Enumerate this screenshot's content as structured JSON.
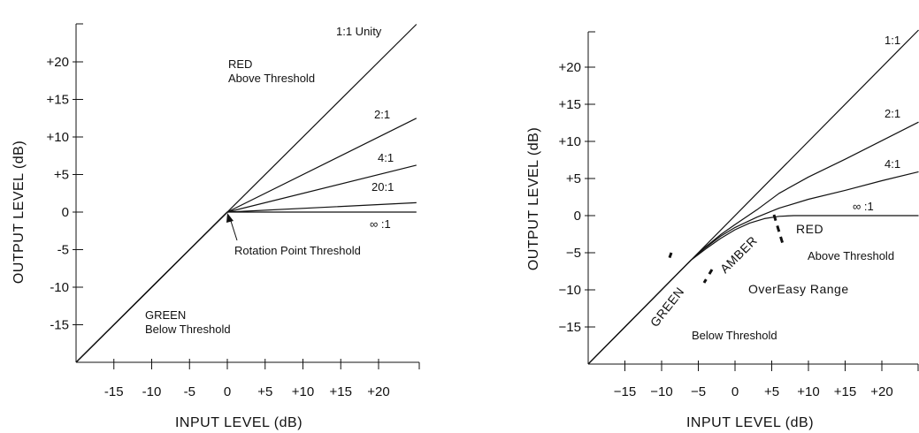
{
  "chart_data": [
    {
      "type": "line",
      "title": "",
      "xlabel": "INPUT LEVEL (dB)",
      "ylabel": "OUTPUT LEVEL (dB)",
      "xlim": [
        -20,
        25
      ],
      "ylim": [
        -20,
        25
      ],
      "x_ticks": [
        -15,
        -10,
        -5,
        0,
        5,
        10,
        15,
        20
      ],
      "x_tick_labels": [
        "-15",
        "-10",
        "-5",
        "0",
        "+5",
        "+10",
        "+15",
        "+20"
      ],
      "y_ticks": [
        20,
        15,
        10,
        5,
        0,
        -5,
        -10,
        -15
      ],
      "y_tick_labels": [
        "+20",
        "+15",
        "+10",
        "+5",
        "0",
        "-5",
        "-10",
        "-15"
      ],
      "grid": false,
      "series": [
        {
          "name": "1:1 Unity",
          "x": [
            -20,
            25
          ],
          "y": [
            -20,
            25
          ]
        },
        {
          "name": "2:1",
          "x": [
            -20,
            0,
            25
          ],
          "y": [
            -20,
            0,
            12.5
          ]
        },
        {
          "name": "4:1",
          "x": [
            -20,
            0,
            25
          ],
          "y": [
            -20,
            0,
            6.25
          ]
        },
        {
          "name": "20:1",
          "x": [
            -20,
            0,
            25
          ],
          "y": [
            -20,
            0,
            1.25
          ]
        },
        {
          "name": "∞ :1",
          "x": [
            -20,
            0,
            25
          ],
          "y": [
            -20,
            0,
            0
          ]
        }
      ],
      "annotations": [
        {
          "text": "1:1  Unity"
        },
        {
          "text": "RED"
        },
        {
          "text": "Above Threshold"
        },
        {
          "text": "2:1"
        },
        {
          "text": "4:1"
        },
        {
          "text": "20:1"
        },
        {
          "text": "∞ :1"
        },
        {
          "text": "Rotation Point Threshold"
        },
        {
          "text": "GREEN"
        },
        {
          "text": "Below Threshold"
        }
      ],
      "colors": {
        "line": "#111111",
        "background": "#ffffff"
      }
    },
    {
      "type": "line",
      "title": "",
      "xlabel": "INPUT LEVEL (dB)",
      "ylabel": "OUTPUT LEVEL (dB)",
      "xlim": [
        -20,
        25
      ],
      "ylim": [
        -20,
        25
      ],
      "x_ticks": [
        -15,
        -10,
        -5,
        0,
        5,
        10,
        15,
        20
      ],
      "x_tick_labels": [
        "−15",
        "−10",
        "−5",
        "0",
        "+5",
        "+10",
        "+15",
        "+20"
      ],
      "y_ticks": [
        20,
        15,
        10,
        5,
        0,
        -5,
        -10,
        -15
      ],
      "y_tick_labels": [
        "+20",
        "+15",
        "+10",
        "+5",
        "0",
        "−5",
        "−10",
        "−15"
      ],
      "grid": false,
      "series": [
        {
          "name": "1:1",
          "x": [
            -20,
            25
          ],
          "y": [
            -20,
            25
          ]
        },
        {
          "name": "2:1",
          "x": [
            -20,
            -6,
            -4,
            -2,
            0,
            3,
            6,
            10,
            15,
            20,
            25
          ],
          "y": [
            -20,
            -6,
            -4.2,
            -2.6,
            -1.2,
            0.8,
            3.0,
            5.2,
            7.6,
            10.1,
            12.6
          ]
        },
        {
          "name": "4:1",
          "x": [
            -20,
            -6,
            -4,
            -2,
            0,
            3,
            6,
            10,
            15,
            20,
            25
          ],
          "y": [
            -20,
            -6,
            -4.3,
            -2.8,
            -1.6,
            -0.2,
            1.0,
            2.2,
            3.4,
            4.7,
            5.9
          ]
        },
        {
          "name": "∞ :1",
          "x": [
            -20,
            -6,
            -4,
            -2,
            0,
            2,
            4,
            6,
            8,
            10,
            25
          ],
          "y": [
            -20,
            -6,
            -4.5,
            -3.1,
            -1.9,
            -1.0,
            -0.4,
            -0.1,
            0,
            0,
            0
          ]
        }
      ],
      "annotations": [
        {
          "text": "1:1"
        },
        {
          "text": "2:1"
        },
        {
          "text": "4:1"
        },
        {
          "text": "∞ :1"
        },
        {
          "text": "RED"
        },
        {
          "text": "Above Threshold"
        },
        {
          "text": "AMBER"
        },
        {
          "text": "GREEN"
        },
        {
          "text": "OverEasy  Range"
        },
        {
          "text": "Below Threshold"
        }
      ],
      "colors": {
        "line": "#111111",
        "background": "#ffffff"
      }
    }
  ]
}
